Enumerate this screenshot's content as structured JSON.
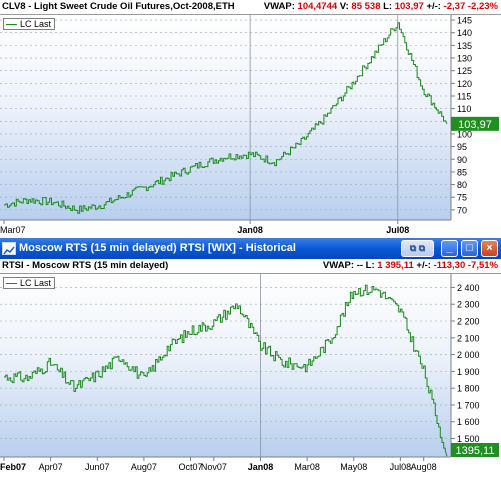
{
  "chart1": {
    "title": "CLV8 - Light Sweet Crude Oil Futures,Oct-2008,ETH",
    "vwap_label": "VWAP:",
    "vwap": "104,4744",
    "v_label": "V:",
    "v": "85 538",
    "l_label": "L:",
    "l": "103,97",
    "chg_label": "+/-:",
    "chg": "-2,37",
    "chg_pct": "-2,23%",
    "legend": "LC  Last",
    "last_value": "103,97",
    "y_ticks": [
      "145",
      "140",
      "135",
      "130",
      "125",
      "120",
      "115",
      "110",
      "105",
      "100",
      "95",
      "90",
      "85",
      "80",
      "75",
      "70"
    ],
    "x_ticks": [
      "Mar07",
      "Jan08",
      "Jul08"
    ]
  },
  "window": {
    "title": "Moscow RTS (15 min delayed) RTSI [WIX] - Historical",
    "ext_label": "⧉ ⧉",
    "min_label": "_",
    "max_label": "□",
    "close_label": "×"
  },
  "chart2": {
    "title": "RTSI - Moscow RTS (15 min delayed)",
    "vwap_label": "VWAP:",
    "vwap": "--",
    "l_label": "L:",
    "l": "1 395,11",
    "chg_label": "+/-:",
    "chg": "-113,30",
    "chg_pct": "-7,51%",
    "legend": "LC  Last",
    "last_value": "1395,11",
    "y_ticks": [
      "2 400",
      "2 300",
      "2 200",
      "2 100",
      "2 000",
      "1 900",
      "1 800",
      "1 700",
      "1 600",
      "1 500"
    ],
    "x_ticks": [
      "Feb07",
      "Apr07",
      "Jun07",
      "Aug07",
      "Oct07",
      "Nov07",
      "Jan08",
      "Mar08",
      "May08",
      "Jul08",
      "Aug08"
    ]
  },
  "chart_data": [
    {
      "type": "line",
      "title": "CLV8 - Light Sweet Crude Oil Futures,Oct-2008,ETH",
      "xlabel": "",
      "ylabel": "",
      "ylim": [
        66,
        147
      ],
      "x": [
        "2007-03",
        "2007-04",
        "2007-05",
        "2007-06",
        "2007-07",
        "2007-08",
        "2007-09",
        "2007-10",
        "2007-11",
        "2007-12",
        "2008-01",
        "2008-02",
        "2008-03",
        "2008-04",
        "2008-05",
        "2008-06",
        "2008-07",
        "2008-08",
        "2008-09"
      ],
      "series": [
        {
          "values": [
            72,
            74,
            73,
            70,
            72,
            76,
            80,
            84,
            88,
            91,
            92,
            89,
            96,
            106,
            118,
            131,
            144,
            118,
            104
          ]
        }
      ]
    },
    {
      "type": "line",
      "title": "RTSI - Moscow RTS (15 min delayed)",
      "xlabel": "",
      "ylabel": "",
      "ylim": [
        1390,
        2480
      ],
      "x": [
        "2007-02",
        "2007-03",
        "2007-04",
        "2007-05",
        "2007-06",
        "2007-07",
        "2007-08",
        "2007-09",
        "2007-10",
        "2007-11",
        "2007-12",
        "2008-01",
        "2008-02",
        "2008-03",
        "2008-04",
        "2008-05",
        "2008-06",
        "2008-07",
        "2008-08",
        "2008-09"
      ],
      "series": [
        {
          "values": [
            1870,
            1860,
            1950,
            1800,
            1880,
            1990,
            1850,
            2040,
            2140,
            2190,
            2300,
            2050,
            1950,
            1930,
            2090,
            2380,
            2390,
            2260,
            1900,
            1395
          ]
        }
      ]
    }
  ]
}
